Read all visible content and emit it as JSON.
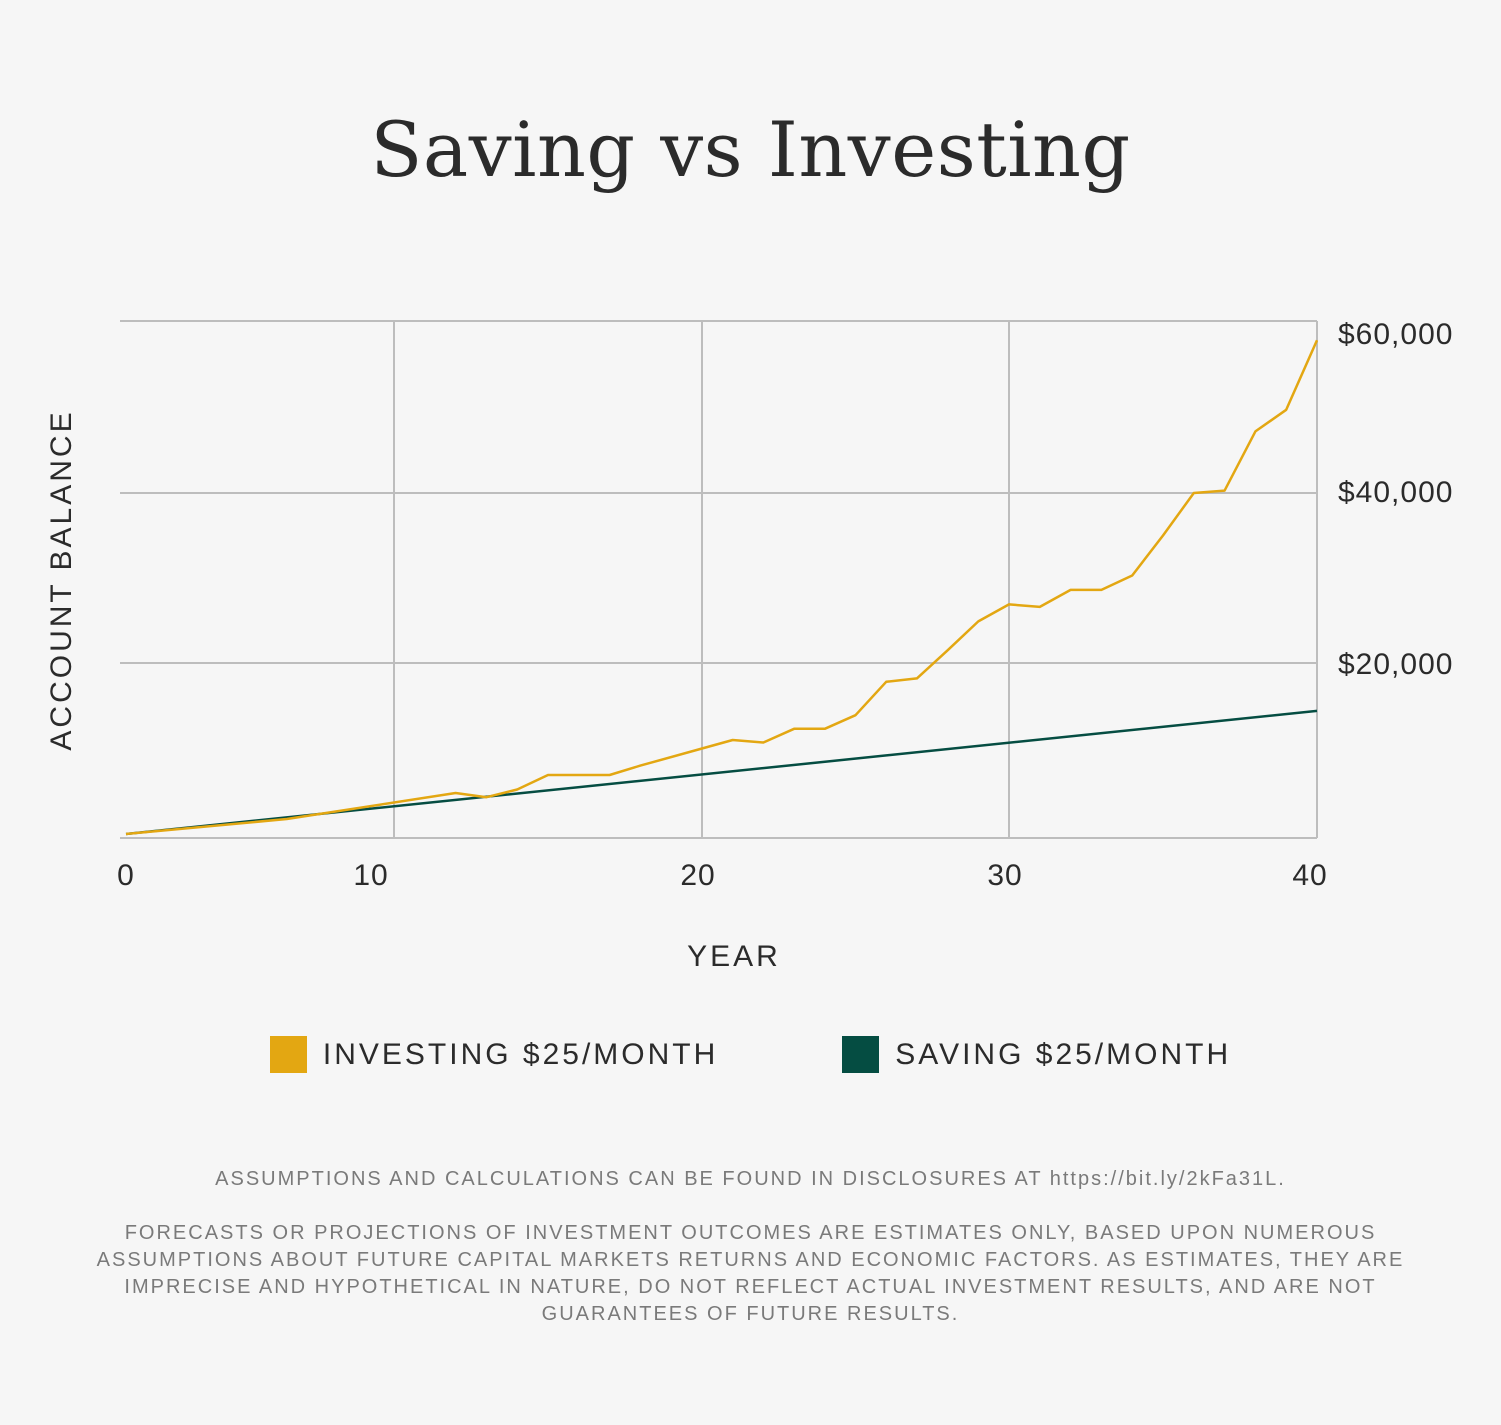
{
  "chart_data": {
    "type": "line",
    "title": "Saving vs Investing",
    "xlabel": "YEAR",
    "ylabel": "ACCOUNT BALANCE",
    "xlim": [
      0,
      40
    ],
    "ylim": [
      0,
      60000
    ],
    "x_ticks": [
      "0",
      "10",
      "20",
      "30",
      "40"
    ],
    "y_ticks": [
      {
        "value": 20000,
        "label": "$20,000"
      },
      {
        "value": 40000,
        "label": "$40,000"
      },
      {
        "value": 60000,
        "label": "$60,000"
      }
    ],
    "grid": true,
    "legend_position": "bottom-center",
    "series": [
      {
        "name": "INVESTING $25/MONTH",
        "color": "#e3a712",
        "x": [
          0,
          6,
          12,
          13,
          14,
          15,
          17,
          18,
          20,
          21,
          22,
          23,
          24,
          25,
          26,
          27,
          28,
          29,
          30,
          31,
          32,
          33,
          34,
          35,
          36,
          37,
          38,
          39,
          40
        ],
        "values": [
          0,
          1750,
          4800,
          4300,
          5200,
          6900,
          6900,
          8000,
          10000,
          11000,
          10700,
          12300,
          12300,
          13900,
          17800,
          18200,
          21500,
          24900,
          26900,
          26600,
          28600,
          28600,
          30300,
          35000,
          40000,
          40300,
          47700,
          50400,
          59100
        ]
      },
      {
        "name": "SAVING $25/MONTH",
        "color": "#054d42",
        "x": [
          0,
          40
        ],
        "values": [
          0,
          14400
        ]
      }
    ]
  },
  "footnotes": {
    "line1": "ASSUMPTIONS AND CALCULATIONS CAN BE FOUND IN DISCLOSURES AT https://bit.ly/2kFa31L.",
    "line2": "FORECASTS OR PROJECTIONS OF INVESTMENT OUTCOMES ARE ESTIMATES ONLY, BASED UPON NUMEROUS ASSUMPTIONS ABOUT FUTURE CAPITAL MARKETS RETURNS AND ECONOMIC FACTORS. AS ESTIMATES, THEY ARE IMPRECISE AND HYPOTHETICAL IN NATURE, DO NOT REFLECT ACTUAL INVESTMENT RESULTS, AND ARE NOT GUARANTEES OF FUTURE RESULTS."
  }
}
